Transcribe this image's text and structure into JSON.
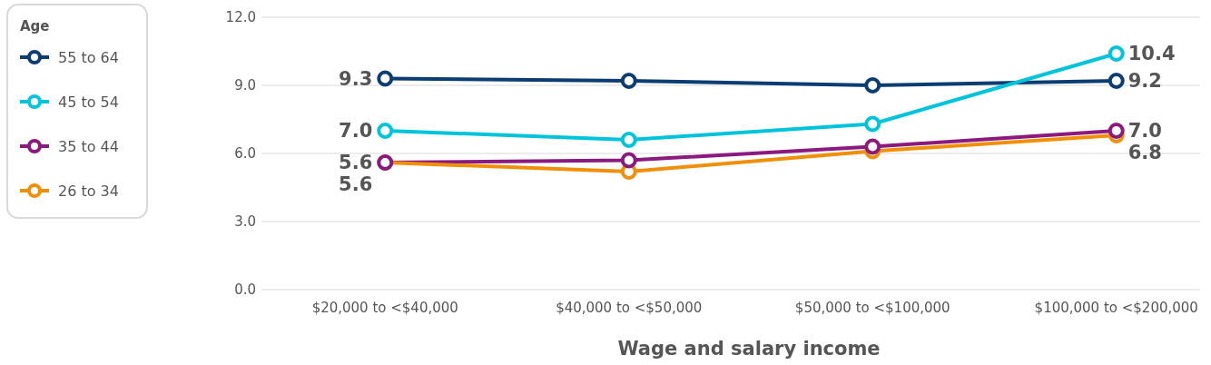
{
  "chart_data": {
    "type": "line",
    "xlabel": "Wage and salary income",
    "legend_title": "Age",
    "categories": [
      "$20,000 to <$40,000",
      "$40,000 to <$50,000",
      "$50,000 to <$100,000",
      "$100,000 to <$200,000"
    ],
    "ylim": [
      0,
      12
    ],
    "yticks": [
      {
        "value": 0,
        "label": "0.0"
      },
      {
        "value": 3,
        "label": "3.0"
      },
      {
        "value": 6,
        "label": "6.0"
      },
      {
        "value": 9,
        "label": "9.0"
      },
      {
        "value": 12,
        "label": "12.0"
      }
    ],
    "grid": "y",
    "legend": "top left",
    "marker": "circle",
    "line_style": "solid",
    "series": [
      {
        "name": "55 to 64",
        "color": "#0b3d73",
        "values": [
          9.3,
          9.2,
          9.0,
          9.2
        ],
        "value_labels": [
          "9.3",
          null,
          null,
          "9.2"
        ]
      },
      {
        "name": "45 to 54",
        "color": "#00c4dc",
        "values": [
          7.0,
          6.6,
          7.3,
          10.4
        ],
        "value_labels": [
          "7.0",
          null,
          null,
          "10.4"
        ]
      },
      {
        "name": "35 to 44",
        "color": "#8b1a7f",
        "values": [
          5.6,
          5.7,
          6.3,
          7.0
        ],
        "value_labels": [
          "5.6",
          null,
          null,
          "7.0"
        ]
      },
      {
        "name": "26 to 34",
        "color": "#f0900a",
        "values": [
          5.6,
          5.2,
          6.1,
          6.8
        ],
        "value_labels": [
          "5.6",
          null,
          null,
          "6.8"
        ]
      }
    ]
  }
}
